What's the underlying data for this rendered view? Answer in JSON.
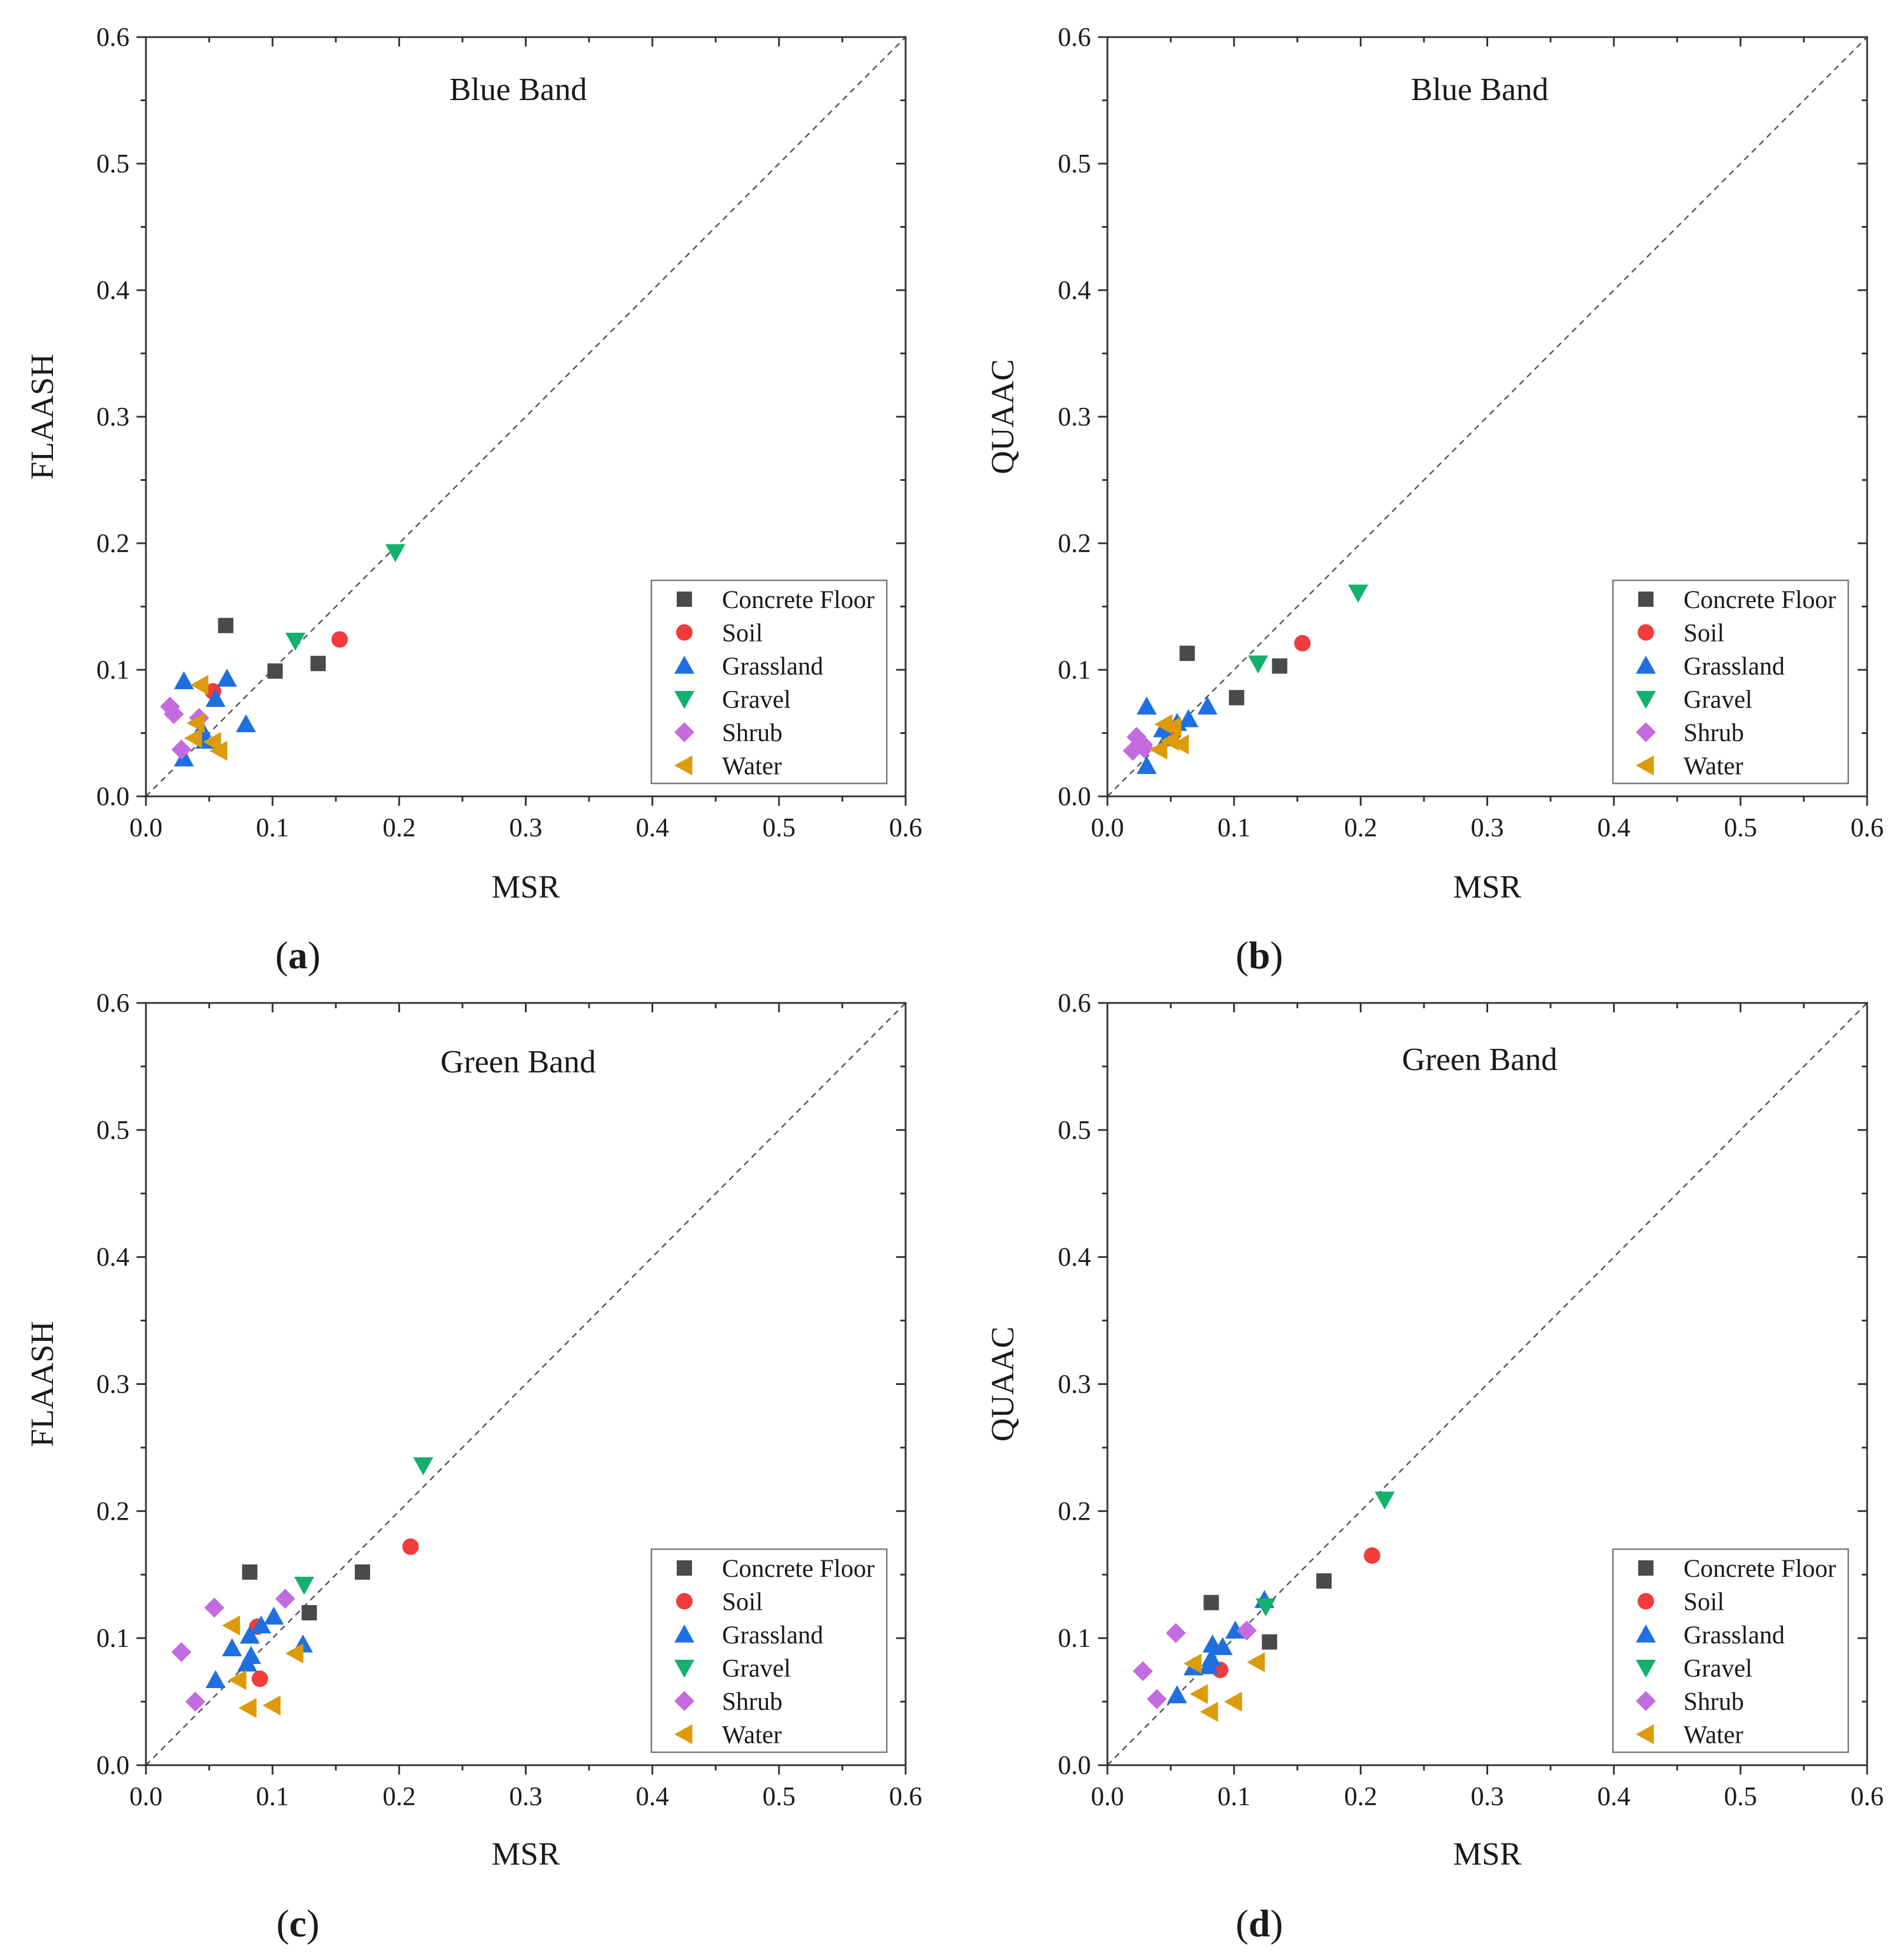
{
  "figure": {
    "panels": [
      {
        "label": "a",
        "title": "Blue Band",
        "xlabel": "MSR",
        "ylabel": "FLAASH"
      },
      {
        "label": "b",
        "title": "Blue Band",
        "xlabel": "MSR",
        "ylabel": "QUAAC"
      },
      {
        "label": "c",
        "title": "Green Band",
        "xlabel": "MSR",
        "ylabel": "FLAASH"
      },
      {
        "label": "d",
        "title": "Green Band",
        "xlabel": "MSR",
        "ylabel": "QUAAC"
      }
    ]
  },
  "chart_data": [
    {
      "type": "scatter",
      "title": "Blue Band",
      "panel_label": "a",
      "xlabel": "MSR",
      "ylabel": "FLAASH",
      "xlim": [
        0,
        0.6
      ],
      "ylim": [
        0,
        0.6
      ],
      "ticks": [
        "0.0",
        "0.1",
        "0.2",
        "0.3",
        "0.4",
        "0.5",
        "0.6"
      ],
      "reference_line": "y = x (dashed)",
      "legend_position": "bottom-right",
      "series": [
        {
          "name": "Concrete Floor",
          "marker": "square",
          "color": "#4a4a4a",
          "points": [
            [
              0.063,
              0.135
            ],
            [
              0.102,
              0.099
            ],
            [
              0.136,
              0.105
            ]
          ]
        },
        {
          "name": "Soil",
          "marker": "circle",
          "color": "#f03c3c",
          "points": [
            [
              0.053,
              0.083
            ],
            [
              0.153,
              0.124
            ]
          ]
        },
        {
          "name": "Grassland",
          "marker": "triangle-up",
          "color": "#1f6fe0",
          "points": [
            [
              0.03,
              0.091
            ],
            [
              0.03,
              0.03
            ],
            [
              0.044,
              0.053
            ],
            [
              0.047,
              0.044
            ],
            [
              0.055,
              0.077
            ],
            [
              0.064,
              0.093
            ],
            [
              0.079,
              0.057
            ]
          ]
        },
        {
          "name": "Gravel",
          "marker": "triangle-down",
          "color": "#14b06e",
          "points": [
            [
              0.118,
              0.123
            ],
            [
              0.197,
              0.193
            ]
          ]
        },
        {
          "name": "Shrub",
          "marker": "diamond",
          "color": "#c46be0",
          "points": [
            [
              0.019,
              0.071
            ],
            [
              0.022,
              0.065
            ],
            [
              0.028,
              0.037
            ],
            [
              0.042,
              0.062
            ]
          ]
        },
        {
          "name": "Water",
          "marker": "triangle-left",
          "color": "#dc9b0a",
          "points": [
            [
              0.043,
              0.088
            ],
            [
              0.04,
              0.058
            ],
            [
              0.038,
              0.046
            ],
            [
              0.053,
              0.043
            ],
            [
              0.058,
              0.036
            ]
          ]
        }
      ]
    },
    {
      "type": "scatter",
      "title": "Blue Band",
      "panel_label": "b",
      "xlabel": "MSR",
      "ylabel": "QUAAC",
      "xlim": [
        0,
        0.6
      ],
      "ylim": [
        0,
        0.6
      ],
      "ticks": [
        "0.0",
        "0.1",
        "0.2",
        "0.3",
        "0.4",
        "0.5",
        "0.6"
      ],
      "reference_line": "y = x (dashed)",
      "legend_position": "bottom-right",
      "series": [
        {
          "name": "Concrete Floor",
          "marker": "square",
          "color": "#4a4a4a",
          "points": [
            [
              0.063,
              0.113
            ],
            [
              0.102,
              0.078
            ],
            [
              0.136,
              0.103
            ]
          ]
        },
        {
          "name": "Soil",
          "marker": "circle",
          "color": "#f03c3c",
          "points": [
            [
              0.052,
              0.05
            ],
            [
              0.154,
              0.121
            ]
          ]
        },
        {
          "name": "Grassland",
          "marker": "triangle-up",
          "color": "#1f6fe0",
          "points": [
            [
              0.031,
              0.071
            ],
            [
              0.031,
              0.024
            ],
            [
              0.044,
              0.053
            ],
            [
              0.055,
              0.058
            ],
            [
              0.064,
              0.061
            ],
            [
              0.079,
              0.071
            ],
            [
              0.047,
              0.046
            ]
          ]
        },
        {
          "name": "Gravel",
          "marker": "triangle-down",
          "color": "#14b06e",
          "points": [
            [
              0.119,
              0.105
            ],
            [
              0.198,
              0.161
            ]
          ]
        },
        {
          "name": "Shrub",
          "marker": "diamond",
          "color": "#c46be0",
          "points": [
            [
              0.02,
              0.036
            ],
            [
              0.023,
              0.047
            ],
            [
              0.028,
              0.041
            ],
            [
              0.029,
              0.038
            ]
          ]
        },
        {
          "name": "Water",
          "marker": "triangle-left",
          "color": "#dc9b0a",
          "points": [
            [
              0.041,
              0.037
            ],
            [
              0.045,
              0.057
            ],
            [
              0.052,
              0.055
            ],
            [
              0.058,
              0.041
            ],
            [
              0.05,
              0.044
            ]
          ]
        }
      ]
    },
    {
      "type": "scatter",
      "title": "Green Band",
      "panel_label": "c",
      "xlabel": "MSR",
      "ylabel": "FLAASH",
      "xlim": [
        0,
        0.6
      ],
      "ylim": [
        0,
        0.6
      ],
      "ticks": [
        "0.0",
        "0.1",
        "0.2",
        "0.3",
        "0.4",
        "0.5",
        "0.6"
      ],
      "reference_line": "y = x (dashed)",
      "legend_position": "bottom-right",
      "series": [
        {
          "name": "Concrete Floor",
          "marker": "square",
          "color": "#4a4a4a",
          "points": [
            [
              0.082,
              0.152
            ],
            [
              0.129,
              0.12
            ],
            [
              0.171,
              0.152
            ]
          ]
        },
        {
          "name": "Soil",
          "marker": "circle",
          "color": "#f03c3c",
          "points": [
            [
              0.088,
              0.109
            ],
            [
              0.09,
              0.068
            ],
            [
              0.209,
              0.172
            ]
          ]
        },
        {
          "name": "Grassland",
          "marker": "triangle-up",
          "color": "#1f6fe0",
          "points": [
            [
              0.055,
              0.067
            ],
            [
              0.068,
              0.092
            ],
            [
              0.08,
              0.08
            ],
            [
              0.083,
              0.086
            ],
            [
              0.082,
              0.102
            ],
            [
              0.091,
              0.11
            ],
            [
              0.101,
              0.117
            ],
            [
              0.124,
              0.095
            ]
          ]
        },
        {
          "name": "Gravel",
          "marker": "triangle-down",
          "color": "#14b06e",
          "points": [
            [
              0.125,
              0.142
            ],
            [
              0.219,
              0.236
            ]
          ]
        },
        {
          "name": "Shrub",
          "marker": "diamond",
          "color": "#c46be0",
          "points": [
            [
              0.028,
              0.089
            ],
            [
              0.039,
              0.05
            ],
            [
              0.054,
              0.124
            ],
            [
              0.11,
              0.131
            ]
          ]
        },
        {
          "name": "Water",
          "marker": "triangle-left",
          "color": "#dc9b0a",
          "points": [
            [
              0.068,
              0.11
            ],
            [
              0.073,
              0.067
            ],
            [
              0.081,
              0.045
            ],
            [
              0.1,
              0.047
            ],
            [
              0.118,
              0.088
            ]
          ]
        }
      ]
    },
    {
      "type": "scatter",
      "title": "Green Band",
      "panel_label": "d",
      "xlabel": "MSR",
      "ylabel": "QUAAC",
      "xlim": [
        0,
        0.6
      ],
      "ylim": [
        0,
        0.6
      ],
      "ticks": [
        "0.0",
        "0.1",
        "0.2",
        "0.3",
        "0.4",
        "0.5",
        "0.6"
      ],
      "reference_line": "y = x (dashed)",
      "legend_position": "bottom-right",
      "series": [
        {
          "name": "Concrete Floor",
          "marker": "square",
          "color": "#4a4a4a",
          "points": [
            [
              0.082,
              0.128
            ],
            [
              0.128,
              0.097
            ],
            [
              0.171,
              0.145
            ]
          ]
        },
        {
          "name": "Soil",
          "marker": "circle",
          "color": "#f03c3c",
          "points": [
            [
              0.089,
              0.075
            ],
            [
              0.209,
              0.165
            ]
          ]
        },
        {
          "name": "Grassland",
          "marker": "triangle-up",
          "color": "#1f6fe0",
          "points": [
            [
              0.055,
              0.055
            ],
            [
              0.068,
              0.077
            ],
            [
              0.08,
              0.078
            ],
            [
              0.083,
              0.095
            ],
            [
              0.082,
              0.084
            ],
            [
              0.091,
              0.093
            ],
            [
              0.101,
              0.106
            ],
            [
              0.124,
              0.13
            ]
          ]
        },
        {
          "name": "Gravel",
          "marker": "triangle-down",
          "color": "#14b06e",
          "points": [
            [
              0.125,
              0.125
            ],
            [
              0.219,
              0.209
            ]
          ]
        },
        {
          "name": "Shrub",
          "marker": "diamond",
          "color": "#c46be0",
          "points": [
            [
              0.028,
              0.074
            ],
            [
              0.039,
              0.052
            ],
            [
              0.054,
              0.104
            ],
            [
              0.11,
              0.106
            ]
          ]
        },
        {
          "name": "Water",
          "marker": "triangle-left",
          "color": "#dc9b0a",
          "points": [
            [
              0.068,
              0.08
            ],
            [
              0.073,
              0.056
            ],
            [
              0.081,
              0.042
            ],
            [
              0.1,
              0.05
            ],
            [
              0.118,
              0.081
            ]
          ]
        }
      ]
    }
  ]
}
